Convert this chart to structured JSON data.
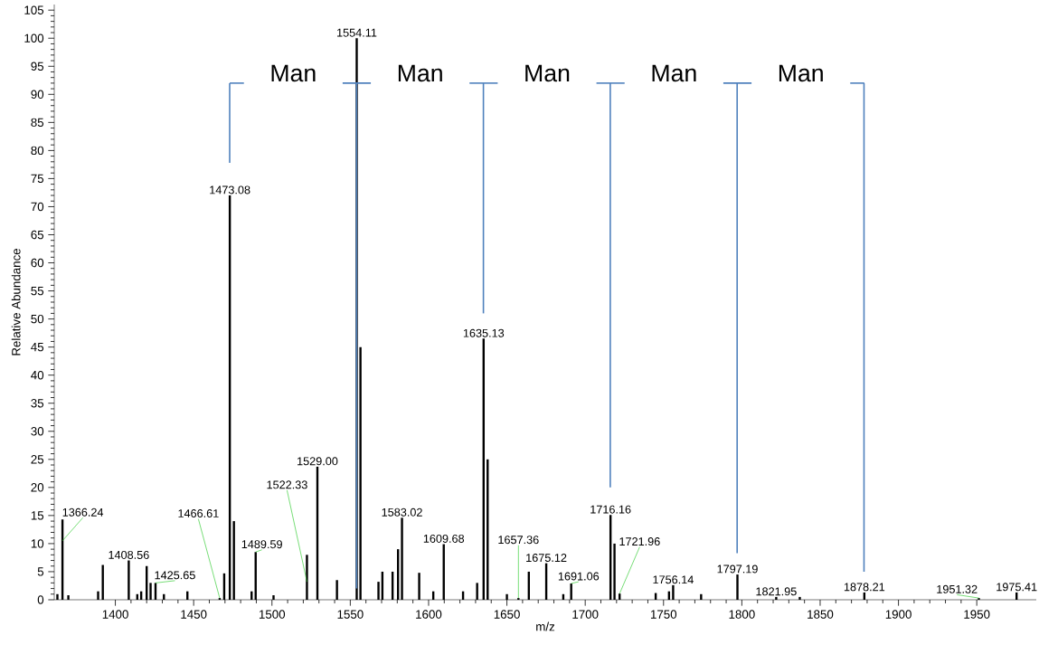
{
  "chart_data": {
    "type": "bar",
    "xlabel": "m/z",
    "ylabel": "Relative Abundance",
    "xlim": [
      1361,
      1988
    ],
    "ylim": [
      0,
      106
    ],
    "xticks": [
      1400,
      1450,
      1500,
      1550,
      1600,
      1650,
      1700,
      1750,
      1800,
      1850,
      1900,
      1950
    ],
    "yticks": [
      0,
      5,
      10,
      15,
      20,
      25,
      30,
      35,
      40,
      45,
      50,
      55,
      60,
      65,
      70,
      75,
      80,
      85,
      90,
      95,
      100,
      105
    ],
    "grid": false,
    "series": [
      {
        "color": "#000000",
        "x": [
          1363,
          1366.24,
          1370,
          1389,
          1392,
          1408.56,
          1414,
          1416.5,
          1420,
          1422.5,
          1425.65,
          1431,
          1446,
          1466.61,
          1469.5,
          1473.08,
          1475.7,
          1487,
          1489.59,
          1501,
          1522.33,
          1529,
          1541.5,
          1554.11,
          1556.5,
          1568,
          1570.5,
          1577,
          1580.5,
          1583.02,
          1594,
          1603,
          1609.68,
          1622,
          1631,
          1635.13,
          1637.7,
          1650,
          1657.36,
          1664,
          1675.12,
          1686,
          1691.06,
          1716.16,
          1718.7,
          1721.96,
          1745,
          1753.5,
          1756.14,
          1774,
          1797.19,
          1821.95,
          1837,
          1878.21,
          1951.32,
          1975.41
        ],
        "values": [
          1,
          14.3,
          0.8,
          1.5,
          6.2,
          7,
          1,
          1.5,
          6,
          3,
          3,
          1,
          1.5,
          0.3,
          4.7,
          72,
          14,
          1.5,
          8.5,
          0.8,
          8,
          23.7,
          3.5,
          100,
          45,
          3.2,
          5,
          5,
          9,
          14.6,
          4.8,
          1.5,
          9.9,
          1.5,
          3,
          46.5,
          25,
          1,
          0.3,
          5,
          6.5,
          1,
          2.9,
          15.1,
          10,
          1.1,
          1.2,
          1.5,
          2.6,
          1,
          4.5,
          0.5,
          0.5,
          1.3,
          0.3,
          1.3
        ]
      },
      {
        "type": "line",
        "color": "#4f81bd",
        "x": [
          1473,
          1473
        ],
        "values": [
          77.8,
          92
        ]
      },
      {
        "type": "line",
        "color": "#4f81bd",
        "x": [
          1554,
          1554
        ],
        "values": [
          2,
          92
        ]
      },
      {
        "type": "line",
        "color": "#4f81bd",
        "x": [
          1635,
          1635
        ],
        "values": [
          51,
          92
        ]
      },
      {
        "type": "line",
        "color": "#4f81bd",
        "x": [
          1716,
          1716
        ],
        "values": [
          20,
          92
        ]
      },
      {
        "type": "line",
        "color": "#4f81bd",
        "x": [
          1797,
          1797
        ],
        "values": [
          8.3,
          92
        ]
      },
      {
        "type": "line",
        "color": "#4f81bd",
        "x": [
          1878,
          1878
        ],
        "values": [
          5,
          92
        ]
      }
    ],
    "annotations": [
      {
        "text": "1366.24",
        "x": 1366.24,
        "y": 10.5
      },
      {
        "text": "1408.56",
        "x": 1408.56,
        "y": 7
      },
      {
        "text": "1425.65",
        "x": 1425.65,
        "y": 3
      },
      {
        "text": "1466.61",
        "x": 1466.61,
        "y": 0.3
      },
      {
        "text": "1473.08",
        "x": 1473.08,
        "y": 72
      },
      {
        "text": "1489.59",
        "x": 1489.59,
        "y": 8.5
      },
      {
        "text": "1522.33",
        "x": 1522.33,
        "y": 3.2
      },
      {
        "text": "1529.00",
        "x": 1529.0,
        "y": 23.7
      },
      {
        "text": "1554.11",
        "x": 1554.11,
        "y": 100
      },
      {
        "text": "1583.02",
        "x": 1583.02,
        "y": 14.6
      },
      {
        "text": "1609.68",
        "x": 1609.68,
        "y": 9.9
      },
      {
        "text": "1635.13",
        "x": 1635.13,
        "y": 46.5
      },
      {
        "text": "1657.36",
        "x": 1657.36,
        "y": 0.3
      },
      {
        "text": "1675.12",
        "x": 1675.12,
        "y": 6.5
      },
      {
        "text": "1691.06",
        "x": 1691.06,
        "y": 2.9
      },
      {
        "text": "1716.16",
        "x": 1716.16,
        "y": 15.1
      },
      {
        "text": "1721.96",
        "x": 1721.96,
        "y": 1.1
      },
      {
        "text": "1756.14",
        "x": 1756.14,
        "y": 2.6
      },
      {
        "text": "1797.19",
        "x": 1797.19,
        "y": 4.5
      },
      {
        "text": "1821.95",
        "x": 1821.95,
        "y": 0.5
      },
      {
        "text": "1878.21",
        "x": 1878.21,
        "y": 1.3
      },
      {
        "text": "1951.32",
        "x": 1951.32,
        "y": 0.3
      },
      {
        "text": "1975.41",
        "x": 1975.41,
        "y": 1.3
      },
      "Man",
      "Man",
      "Man",
      "Man",
      "Man"
    ]
  }
}
